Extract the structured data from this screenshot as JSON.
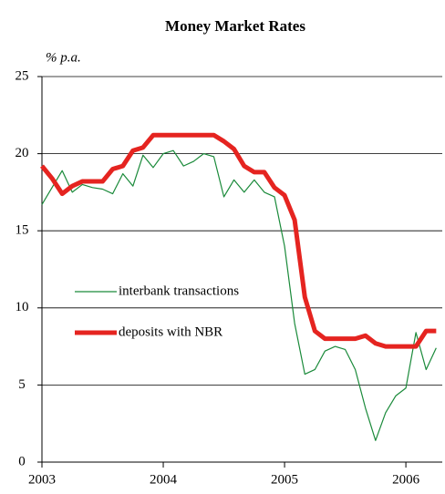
{
  "chart_data": {
    "type": "line",
    "title": "Money Market Rates",
    "y_label": "% p.a.",
    "x": [
      2003,
      2003.083,
      2003.167,
      2003.25,
      2003.333,
      2003.417,
      2003.5,
      2003.583,
      2003.667,
      2003.75,
      2003.833,
      2003.917,
      2004,
      2004.083,
      2004.167,
      2004.25,
      2004.333,
      2004.417,
      2004.5,
      2004.583,
      2004.667,
      2004.75,
      2004.833,
      2004.917,
      2005,
      2005.083,
      2005.167,
      2005.25,
      2005.333,
      2005.417,
      2005.5,
      2005.583,
      2005.667,
      2005.75,
      2005.833,
      2005.917,
      2006,
      2006.083,
      2006.167,
      2006.25
    ],
    "series": [
      {
        "name": "interbank transactions",
        "color": "#1a8a3a",
        "width": 1.2,
        "values": [
          16.7,
          17.8,
          18.9,
          17.5,
          18.0,
          17.8,
          17.7,
          17.4,
          18.7,
          17.9,
          19.9,
          19.1,
          20.0,
          20.2,
          19.2,
          19.5,
          20.0,
          19.8,
          17.2,
          18.3,
          17.5,
          18.3,
          17.5,
          17.2,
          14.0,
          9.0,
          5.7,
          6.0,
          7.2,
          7.5,
          7.3,
          6.0,
          3.5,
          1.4,
          3.2,
          4.3,
          4.8,
          8.4,
          6.0,
          7.4
        ]
      },
      {
        "name": "deposits with NBR",
        "color": "#e52420",
        "width": 5,
        "values": [
          19.2,
          18.4,
          17.4,
          17.9,
          18.2,
          18.2,
          18.2,
          19.0,
          19.2,
          20.2,
          20.4,
          21.2,
          21.2,
          21.2,
          21.2,
          21.2,
          21.2,
          21.2,
          20.8,
          20.3,
          19.2,
          18.8,
          18.8,
          17.8,
          17.3,
          15.7,
          10.7,
          8.5,
          8.0,
          8.0,
          8.0,
          8.0,
          8.2,
          7.7,
          7.5,
          7.5,
          7.5,
          7.5,
          8.5,
          8.5
        ]
      }
    ],
    "xlim": [
      2003,
      2006.3
    ],
    "xticks": [
      2003,
      2004,
      2005,
      2006
    ],
    "ylim": [
      0,
      25
    ],
    "yticks": [
      0,
      5,
      10,
      15,
      20,
      25
    ],
    "grid": true,
    "legend": "center-left"
  }
}
